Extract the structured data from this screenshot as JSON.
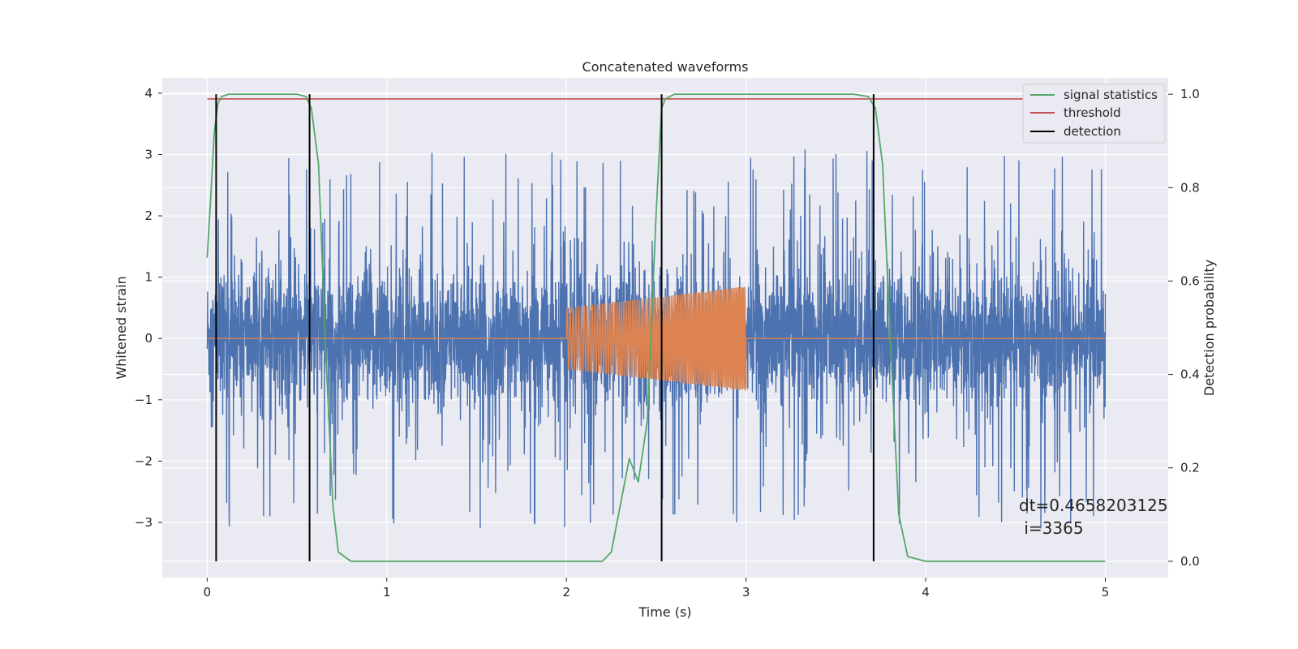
{
  "chart_data": {
    "type": "line",
    "title": "Concatenated waveforms",
    "xlabel": "Time (s)",
    "ylabel_left": "Whitened strain",
    "ylabel_right": "Detection probability",
    "xlim": [
      -0.25,
      5.35
    ],
    "ylim_left": [
      -3.9,
      4.25
    ],
    "ylim_right": [
      -0.035,
      1.035
    ],
    "x_ticks": [
      0,
      1,
      2,
      3,
      4,
      5
    ],
    "y_ticks_left": [
      4,
      3,
      2,
      1,
      0,
      -1,
      -2,
      -3
    ],
    "y_ticks_right": [
      1.0,
      0.8,
      0.6,
      0.4,
      0.2,
      0.0
    ],
    "grid": true,
    "legend_position": "top-right",
    "legend": [
      "signal statistics",
      "threshold",
      "detection"
    ],
    "colors": {
      "strain": "#4c72b0",
      "template": "#dd8452",
      "signal_statistics": "#55a868",
      "threshold": "#c44e52",
      "detection": "#000000",
      "background": "#eaeaf2",
      "grid": "#ffffff"
    },
    "series": [
      {
        "role": "strain",
        "x_range": [
          0,
          5
        ],
        "noise_description": "dense noise, mostly within [-1.3, 1.3] with spikes up to about ±3.3"
      },
      {
        "role": "template",
        "x_range": [
          2,
          3
        ],
        "amplitude_start": 0.5,
        "amplitude_end": 0.85,
        "zero_outside": true
      },
      {
        "name": "signal statistics",
        "x": [
          0,
          0.02,
          0.04,
          0.06,
          0.08,
          0.12,
          0.2,
          0.5,
          0.55,
          0.58,
          0.62,
          0.66,
          0.7,
          0.73,
          0.8,
          1.5,
          2.0,
          2.2,
          2.25,
          2.3,
          2.35,
          2.4,
          2.45,
          2.5,
          2.53,
          2.55,
          2.6,
          2.7,
          3.6,
          3.68,
          3.72,
          3.76,
          3.8,
          3.85,
          3.9,
          4.0,
          5.0
        ],
        "y": [
          0.65,
          0.78,
          0.92,
          0.98,
          0.995,
          1.0,
          1.0,
          1.0,
          0.995,
          0.97,
          0.85,
          0.45,
          0.12,
          0.02,
          0.0,
          0.0,
          0.0,
          0.0,
          0.02,
          0.12,
          0.22,
          0.17,
          0.3,
          0.75,
          0.97,
          0.99,
          1.0,
          1.0,
          1.0,
          0.995,
          0.97,
          0.85,
          0.5,
          0.1,
          0.01,
          0.0,
          0.0
        ]
      },
      {
        "name": "threshold",
        "x": [
          0,
          5
        ],
        "y": [
          0.99,
          0.99
        ]
      },
      {
        "name": "detection",
        "x_positions": [
          0.05,
          0.57,
          2.53,
          3.71
        ],
        "y_range": [
          0.0,
          1.0
        ]
      }
    ],
    "annotation": {
      "line1": "dt=0.4658203125",
      "line2": " i=3365"
    }
  }
}
